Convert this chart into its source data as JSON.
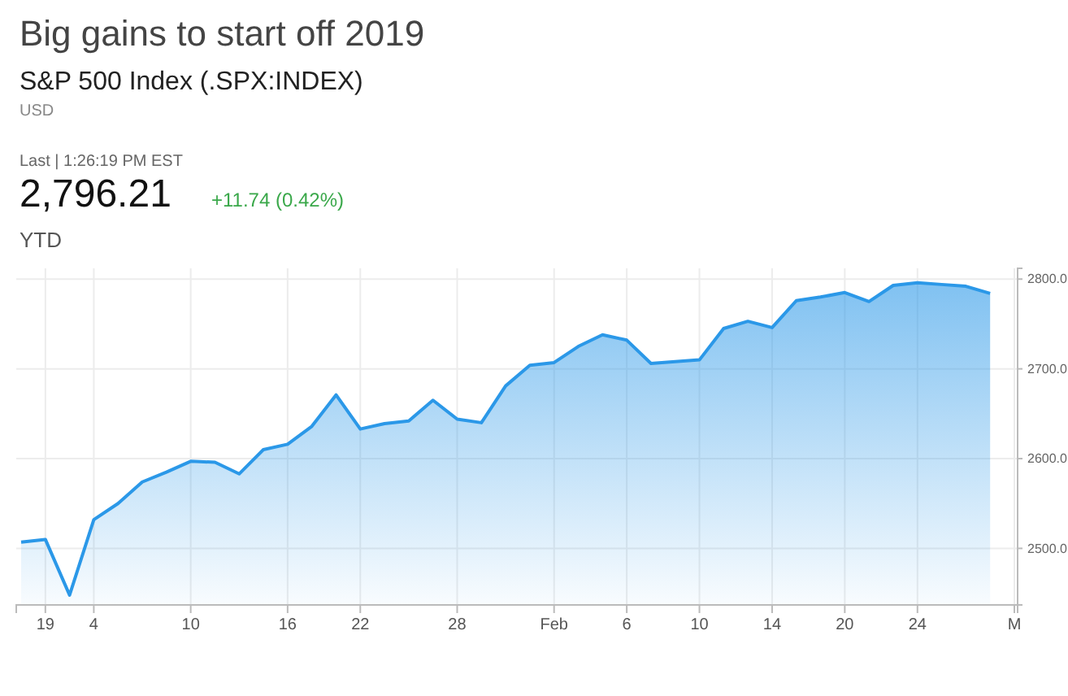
{
  "chart_data": {
    "type": "area",
    "title": "Big gains to start off 2019",
    "subtitle": "S&P 500 Index (.SPX:INDEX)",
    "annotations": [
      "USD",
      "Last | 1:26:19 PM EST",
      "2,796.21",
      "+11.74 (0.42%)",
      "YTD"
    ],
    "categories": [
      null,
      "19",
      null,
      "4",
      null,
      null,
      null,
      "10",
      null,
      null,
      null,
      "16",
      null,
      null,
      "22",
      null,
      null,
      null,
      "28",
      null,
      null,
      null,
      "Feb",
      null,
      null,
      "6",
      null,
      null,
      "10",
      null,
      null,
      "14",
      null,
      null,
      "20",
      null,
      null,
      "24",
      null,
      null,
      null,
      "M"
    ],
    "series": [
      {
        "color": "#2b98e8",
        "values": [
          2507,
          2510,
          2448,
          2532,
          2550,
          2574,
          2585,
          2597,
          2596,
          2583,
          2610,
          2616,
          2636,
          2671,
          2633,
          2639,
          2642,
          2665,
          2644,
          2640,
          2681,
          2704,
          2707,
          2725,
          2738,
          2732,
          2706,
          2708,
          2710,
          2745,
          2753,
          2746,
          2776,
          2780,
          2785,
          2775,
          2793,
          2796,
          2794,
          2792,
          2784,
          null
        ]
      }
    ],
    "ylim": [
      2437,
      2812
    ],
    "yticks": [
      {
        "value": 2500,
        "label": "2500.0"
      },
      {
        "value": 2600,
        "label": "2600.0"
      },
      {
        "value": 2700,
        "label": "2700.0"
      },
      {
        "value": 2800,
        "label": "2800.0"
      }
    ],
    "grid": true
  }
}
